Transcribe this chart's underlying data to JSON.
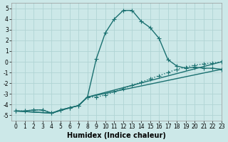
{
  "xlabel": "Humidex (Indice chaleur)",
  "xlim": [
    -0.5,
    23
  ],
  "ylim": [
    -5.5,
    5.5
  ],
  "yticks": [
    -5,
    -4,
    -3,
    -2,
    -1,
    0,
    1,
    2,
    3,
    4,
    5
  ],
  "xticks": [
    0,
    1,
    2,
    3,
    4,
    5,
    6,
    7,
    8,
    9,
    10,
    11,
    12,
    13,
    14,
    15,
    16,
    17,
    18,
    19,
    20,
    21,
    22,
    23
  ],
  "background_color": "#cce8e8",
  "grid_color": "#b0d4d4",
  "line_color": "#1a7070",
  "line1_x": [
    0,
    1,
    2,
    3,
    4,
    5,
    6,
    7,
    8,
    9,
    10,
    11,
    12,
    13,
    14,
    15,
    16,
    17,
    18,
    19,
    20,
    21,
    22,
    23
  ],
  "line1_y": [
    -4.6,
    -4.6,
    -4.5,
    -4.5,
    -4.8,
    -4.5,
    -4.3,
    -4.1,
    -3.3,
    0.3,
    2.7,
    4.0,
    4.8,
    4.8,
    3.8,
    3.2,
    2.2,
    0.2,
    -0.4,
    -0.6,
    -0.5,
    -0.6,
    -0.6,
    -0.7
  ],
  "line1_style": "-",
  "line2_x": [
    0,
    1,
    2,
    3,
    4,
    5,
    6,
    7,
    8,
    9,
    10,
    11,
    12,
    13,
    14,
    15,
    16,
    17,
    18,
    19,
    20,
    21,
    22,
    23
  ],
  "line2_y": [
    -4.6,
    -4.6,
    -4.5,
    -4.5,
    -4.8,
    -4.5,
    -4.3,
    -4.1,
    -3.3,
    -3.3,
    -3.1,
    -2.8,
    -2.5,
    -2.2,
    -1.9,
    -1.6,
    -1.3,
    -1.0,
    -0.7,
    -0.5,
    -0.3,
    -0.2,
    -0.1,
    0.0
  ],
  "line2_style": "dotted",
  "line3_x": [
    0,
    4,
    6,
    7,
    8,
    23
  ],
  "line3_y": [
    -4.6,
    -4.8,
    -4.3,
    -4.1,
    -3.3,
    -0.7
  ],
  "line3_style": "-",
  "line4_x": [
    0,
    4,
    6,
    7,
    8,
    23
  ],
  "line4_y": [
    -4.6,
    -4.8,
    -4.3,
    -4.1,
    -3.3,
    0.0
  ],
  "line4_style": "-",
  "marker": "+",
  "markersize": 4,
  "linewidth": 1.0,
  "tick_fontsize": 5.5,
  "xlabel_fontsize": 7
}
